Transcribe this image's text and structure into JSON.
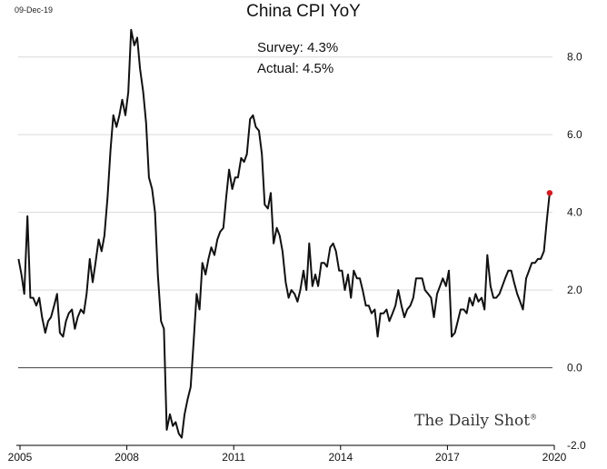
{
  "date_stamp": "09-Dec-19",
  "watermark": "The Daily Shot",
  "watermark_mark": "®",
  "colors": {
    "line": "#111111",
    "last_point": "#e0161b",
    "grid": "#d9d9d9",
    "zero": "#555555"
  },
  "chart_data": {
    "type": "line",
    "title": "China CPI YoY",
    "annotations": [
      "Survey: 4.3%",
      "Actual:  4.5%"
    ],
    "xlabel": "",
    "ylabel": "",
    "xlim": [
      2005.0,
      2020.0
    ],
    "ylim": [
      -2.0,
      9.0
    ],
    "x_ticks": [
      {
        "value": 2005,
        "label": "2005"
      },
      {
        "value": 2008,
        "label": "2008"
      },
      {
        "value": 2011,
        "label": "2011"
      },
      {
        "value": 2014,
        "label": "2014"
      },
      {
        "value": 2017,
        "label": "2017"
      },
      {
        "value": 2020,
        "label": "2020"
      }
    ],
    "y_ticks": [
      {
        "value": 8.0,
        "label": "8.0"
      },
      {
        "value": 6.0,
        "label": "6.0"
      },
      {
        "value": 4.0,
        "label": "4.0"
      },
      {
        "value": 2.0,
        "label": "2.0"
      },
      {
        "value": 0.0,
        "label": "0.0"
      },
      {
        "value": -2.0,
        "label": "-2.0"
      }
    ],
    "gridlines": [
      2.0,
      4.0,
      6.0,
      8.0
    ],
    "zero_line": 0.0,
    "series": [
      {
        "name": "China CPI YoY",
        "points": [
          [
            2004.96,
            2.8
          ],
          [
            2005.04,
            2.4
          ],
          [
            2005.12,
            1.9
          ],
          [
            2005.21,
            3.9
          ],
          [
            2005.29,
            1.8
          ],
          [
            2005.37,
            1.8
          ],
          [
            2005.46,
            1.6
          ],
          [
            2005.54,
            1.8
          ],
          [
            2005.62,
            1.3
          ],
          [
            2005.71,
            0.9
          ],
          [
            2005.79,
            1.2
          ],
          [
            2005.87,
            1.3
          ],
          [
            2005.96,
            1.6
          ],
          [
            2006.04,
            1.9
          ],
          [
            2006.12,
            0.9
          ],
          [
            2006.21,
            0.8
          ],
          [
            2006.29,
            1.2
          ],
          [
            2006.37,
            1.4
          ],
          [
            2006.46,
            1.5
          ],
          [
            2006.54,
            1.0
          ],
          [
            2006.62,
            1.3
          ],
          [
            2006.71,
            1.5
          ],
          [
            2006.79,
            1.4
          ],
          [
            2006.87,
            1.9
          ],
          [
            2006.96,
            2.8
          ],
          [
            2007.04,
            2.2
          ],
          [
            2007.12,
            2.7
          ],
          [
            2007.21,
            3.3
          ],
          [
            2007.29,
            3.0
          ],
          [
            2007.37,
            3.4
          ],
          [
            2007.46,
            4.4
          ],
          [
            2007.54,
            5.6
          ],
          [
            2007.62,
            6.5
          ],
          [
            2007.71,
            6.2
          ],
          [
            2007.79,
            6.5
          ],
          [
            2007.87,
            6.9
          ],
          [
            2007.96,
            6.5
          ],
          [
            2008.04,
            7.1
          ],
          [
            2008.12,
            8.7
          ],
          [
            2008.21,
            8.3
          ],
          [
            2008.29,
            8.5
          ],
          [
            2008.37,
            7.7
          ],
          [
            2008.46,
            7.1
          ],
          [
            2008.54,
            6.3
          ],
          [
            2008.62,
            4.9
          ],
          [
            2008.71,
            4.6
          ],
          [
            2008.79,
            4.0
          ],
          [
            2008.87,
            2.4
          ],
          [
            2008.96,
            1.2
          ],
          [
            2009.04,
            1.0
          ],
          [
            2009.12,
            -1.6
          ],
          [
            2009.21,
            -1.2
          ],
          [
            2009.29,
            -1.5
          ],
          [
            2009.37,
            -1.4
          ],
          [
            2009.46,
            -1.7
          ],
          [
            2009.54,
            -1.8
          ],
          [
            2009.62,
            -1.2
          ],
          [
            2009.71,
            -0.8
          ],
          [
            2009.79,
            -0.5
          ],
          [
            2009.87,
            0.6
          ],
          [
            2009.96,
            1.9
          ],
          [
            2010.04,
            1.5
          ],
          [
            2010.12,
            2.7
          ],
          [
            2010.21,
            2.4
          ],
          [
            2010.29,
            2.8
          ],
          [
            2010.37,
            3.1
          ],
          [
            2010.46,
            2.9
          ],
          [
            2010.54,
            3.3
          ],
          [
            2010.62,
            3.5
          ],
          [
            2010.71,
            3.6
          ],
          [
            2010.79,
            4.4
          ],
          [
            2010.87,
            5.1
          ],
          [
            2010.96,
            4.6
          ],
          [
            2011.04,
            4.9
          ],
          [
            2011.12,
            4.9
          ],
          [
            2011.21,
            5.4
          ],
          [
            2011.29,
            5.3
          ],
          [
            2011.37,
            5.5
          ],
          [
            2011.46,
            6.4
          ],
          [
            2011.54,
            6.5
          ],
          [
            2011.62,
            6.2
          ],
          [
            2011.71,
            6.1
          ],
          [
            2011.79,
            5.5
          ],
          [
            2011.87,
            4.2
          ],
          [
            2011.96,
            4.1
          ],
          [
            2012.04,
            4.5
          ],
          [
            2012.12,
            3.2
          ],
          [
            2012.21,
            3.6
          ],
          [
            2012.29,
            3.4
          ],
          [
            2012.37,
            3.0
          ],
          [
            2012.46,
            2.2
          ],
          [
            2012.54,
            1.8
          ],
          [
            2012.62,
            2.0
          ],
          [
            2012.71,
            1.9
          ],
          [
            2012.79,
            1.7
          ],
          [
            2012.87,
            2.0
          ],
          [
            2012.96,
            2.5
          ],
          [
            2013.04,
            2.0
          ],
          [
            2013.12,
            3.2
          ],
          [
            2013.21,
            2.1
          ],
          [
            2013.29,
            2.4
          ],
          [
            2013.37,
            2.1
          ],
          [
            2013.46,
            2.7
          ],
          [
            2013.54,
            2.7
          ],
          [
            2013.62,
            2.6
          ],
          [
            2013.71,
            3.1
          ],
          [
            2013.79,
            3.2
          ],
          [
            2013.87,
            3.0
          ],
          [
            2013.96,
            2.5
          ],
          [
            2014.04,
            2.5
          ],
          [
            2014.12,
            2.0
          ],
          [
            2014.21,
            2.4
          ],
          [
            2014.29,
            1.8
          ],
          [
            2014.37,
            2.5
          ],
          [
            2014.46,
            2.3
          ],
          [
            2014.54,
            2.3
          ],
          [
            2014.62,
            2.0
          ],
          [
            2014.71,
            1.6
          ],
          [
            2014.79,
            1.6
          ],
          [
            2014.87,
            1.4
          ],
          [
            2014.96,
            1.5
          ],
          [
            2015.04,
            0.8
          ],
          [
            2015.12,
            1.4
          ],
          [
            2015.21,
            1.4
          ],
          [
            2015.29,
            1.5
          ],
          [
            2015.37,
            1.2
          ],
          [
            2015.46,
            1.4
          ],
          [
            2015.54,
            1.6
          ],
          [
            2015.62,
            2.0
          ],
          [
            2015.71,
            1.6
          ],
          [
            2015.79,
            1.3
          ],
          [
            2015.87,
            1.5
          ],
          [
            2015.96,
            1.6
          ],
          [
            2016.04,
            1.8
          ],
          [
            2016.12,
            2.3
          ],
          [
            2016.21,
            2.3
          ],
          [
            2016.29,
            2.3
          ],
          [
            2016.37,
            2.0
          ],
          [
            2016.46,
            1.9
          ],
          [
            2016.54,
            1.8
          ],
          [
            2016.62,
            1.3
          ],
          [
            2016.71,
            1.9
          ],
          [
            2016.79,
            2.1
          ],
          [
            2016.87,
            2.3
          ],
          [
            2016.96,
            2.1
          ],
          [
            2017.04,
            2.5
          ],
          [
            2017.12,
            0.8
          ],
          [
            2017.21,
            0.9
          ],
          [
            2017.29,
            1.2
          ],
          [
            2017.37,
            1.5
          ],
          [
            2017.46,
            1.5
          ],
          [
            2017.54,
            1.4
          ],
          [
            2017.62,
            1.8
          ],
          [
            2017.71,
            1.6
          ],
          [
            2017.79,
            1.9
          ],
          [
            2017.87,
            1.7
          ],
          [
            2017.96,
            1.8
          ],
          [
            2018.04,
            1.5
          ],
          [
            2018.12,
            2.9
          ],
          [
            2018.21,
            2.1
          ],
          [
            2018.29,
            1.8
          ],
          [
            2018.37,
            1.8
          ],
          [
            2018.46,
            1.9
          ],
          [
            2018.54,
            2.1
          ],
          [
            2018.62,
            2.3
          ],
          [
            2018.71,
            2.5
          ],
          [
            2018.79,
            2.5
          ],
          [
            2018.87,
            2.2
          ],
          [
            2018.96,
            1.9
          ],
          [
            2019.04,
            1.7
          ],
          [
            2019.12,
            1.5
          ],
          [
            2019.21,
            2.3
          ],
          [
            2019.29,
            2.5
          ],
          [
            2019.37,
            2.7
          ],
          [
            2019.46,
            2.7
          ],
          [
            2019.54,
            2.8
          ],
          [
            2019.62,
            2.8
          ],
          [
            2019.71,
            3.0
          ],
          [
            2019.79,
            3.8
          ],
          [
            2019.87,
            4.5
          ]
        ]
      }
    ],
    "last_point": {
      "x": 2019.87,
      "y": 4.5
    }
  }
}
